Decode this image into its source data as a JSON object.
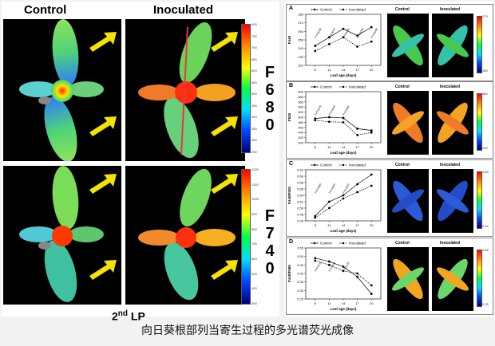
{
  "left": {
    "header_control": "Control",
    "header_inoculated": "Inoculated",
    "f680_letters": [
      "F",
      "6",
      "8",
      "0"
    ],
    "f740_letters": [
      "F",
      "7",
      "4",
      "0"
    ],
    "lp_text": "2",
    "lp_sup": "nd",
    "lp_suffix": " LP",
    "cb_top_ticks": [
      "800",
      "750",
      "700",
      "650",
      "600",
      "550",
      "500",
      "450",
      "400",
      "350",
      "300",
      "250"
    ],
    "cb_bottom_ticks": [
      "1200",
      "1100",
      "1000",
      "900",
      "800",
      "700",
      "600",
      "500",
      "400",
      "300"
    ]
  },
  "right": {
    "thumb_control": "Control",
    "thumb_inoculated": "Inoculated",
    "legend_control": "Control",
    "legend_inoculated": "Inoculated",
    "xlabel": "Leaf age (days)",
    "x": [
      8,
      11,
      14,
      17,
      20
    ],
    "panels": [
      {
        "label": "A",
        "ylabel": "F440",
        "yticks": [
          "280",
          "270",
          "260",
          "250",
          "240",
          "230",
          "220"
        ],
        "cb_max": "270",
        "cb_min": "180",
        "pvals": [
          "P=0.0038",
          "P=0.0073",
          "P=0.0024",
          "P=0.0090",
          "P=0.0038"
        ]
      },
      {
        "label": "B",
        "ylabel": "F520",
        "yticks": [
          "600",
          "580",
          "560",
          "540",
          "520",
          "500",
          "480",
          "460",
          "440",
          "420",
          "400"
        ],
        "cb_max": "580",
        "cb_min": "220",
        "pvals": [
          "P=0.0479",
          "P=0.0325",
          "P=0.0485"
        ]
      },
      {
        "label": "C",
        "ylabel": "F440/F520",
        "yticks": [
          "0.62",
          "0.60",
          "0.58",
          "0.56",
          "0.54",
          "0.52",
          "0.50",
          "0.48",
          "0.46"
        ],
        "cb_max": "0.65",
        "cb_min": "0.45",
        "pvals": [
          "P=0.0380",
          "P=0.0290",
          "P=0.0322"
        ]
      },
      {
        "label": "D",
        "ylabel": "F440/F680",
        "yticks": [
          "0.55",
          "0.50",
          "0.45",
          "0.40",
          "0.35",
          "0.30",
          "0.25"
        ],
        "cb_max": "0.98",
        "cb_min": "0.28",
        "pvals": [
          "P=0.0218",
          "P=0.0311",
          "P=0.0120"
        ]
      }
    ]
  },
  "caption": "向日葵根部列当寄生过程的多光谱荧光成像",
  "chart_data": [
    {
      "type": "line",
      "title": "",
      "xlabel": "Leaf age (days)",
      "ylabel": "F440",
      "x": [
        8,
        11,
        14,
        17,
        20
      ],
      "ylim": [
        220,
        280
      ],
      "series": [
        {
          "name": "Control",
          "values": [
            243,
            253,
            263,
            255,
            265
          ]
        },
        {
          "name": "Inoculated",
          "values": [
            237,
            245,
            253,
            242,
            248
          ]
        }
      ]
    },
    {
      "type": "line",
      "title": "",
      "xlabel": "Leaf age (days)",
      "ylabel": "F520",
      "x": [
        8,
        11,
        14,
        17,
        20
      ],
      "ylim": [
        400,
        600
      ],
      "series": [
        {
          "name": "Control",
          "values": [
            495,
            500,
            497,
            455,
            448
          ]
        },
        {
          "name": "Inoculated",
          "values": [
            488,
            482,
            480,
            430,
            440
          ]
        }
      ]
    },
    {
      "type": "line",
      "title": "",
      "xlabel": "Leaf age (days)",
      "ylabel": "F440/F520",
      "x": [
        8,
        11,
        14,
        17,
        20
      ],
      "ylim": [
        0.46,
        0.62
      ],
      "series": [
        {
          "name": "Control",
          "values": [
            0.475,
            0.52,
            0.54,
            0.575,
            0.605
          ]
        },
        {
          "name": "Inoculated",
          "values": [
            0.47,
            0.5,
            0.53,
            0.55,
            0.57
          ]
        }
      ]
    },
    {
      "type": "line",
      "title": "",
      "xlabel": "Leaf age (days)",
      "ylabel": "F440/F680",
      "x": [
        8,
        11,
        14,
        17,
        20
      ],
      "ylim": [
        0.25,
        0.55
      ],
      "series": [
        {
          "name": "Control",
          "values": [
            0.49,
            0.47,
            0.44,
            0.38,
            0.28
          ]
        },
        {
          "name": "Inoculated",
          "values": [
            0.475,
            0.45,
            0.415,
            0.4,
            0.33
          ]
        }
      ]
    }
  ]
}
